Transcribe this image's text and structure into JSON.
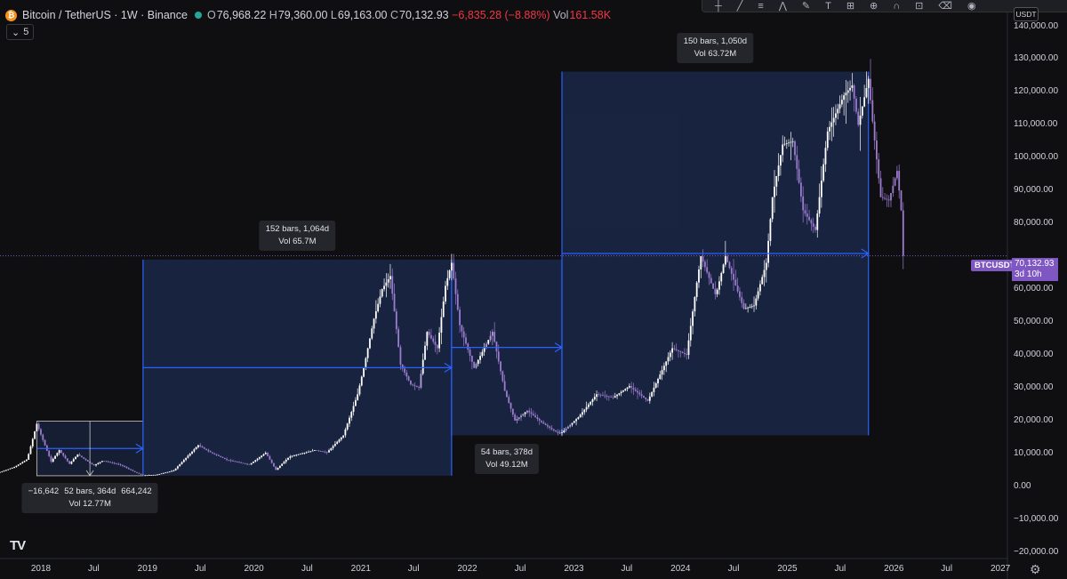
{
  "header": {
    "symbol": "Bitcoin / TetherUS · 1W · Binance",
    "ohlc": {
      "open_label": "O",
      "open": "76,968.22",
      "high_label": "H",
      "high": "79,360.00",
      "low_label": "L",
      "low": "69,163.00",
      "close_label": "C",
      "close": "70,132.93",
      "change": "−6,835.28 (−8.88%)",
      "vol_label": "Vol",
      "vol": "161.58K"
    },
    "indicators_count": "5"
  },
  "currency": "USDT",
  "colors": {
    "background": "#0f0f11",
    "candle": "#ffffff",
    "candle_recent": "#9c7bd0",
    "range_fill": "#1c2b4f",
    "range_line": "#2962ff",
    "price_tag": "#7e57c2"
  },
  "toolbar_icons": [
    "crosshair-icon",
    "trend-line-icon",
    "fib-icon",
    "pattern-icon",
    "brush-icon",
    "text-icon",
    "measure-icon",
    "zoom-icon",
    "magnet-icon",
    "lock-icon",
    "trash-icon",
    "eye-icon"
  ],
  "price_axis": {
    "ticks": [
      {
        "value": 140000,
        "label": "140,000.00"
      },
      {
        "value": 130000,
        "label": "130,000.00"
      },
      {
        "value": 120000,
        "label": "120,000.00"
      },
      {
        "value": 110000,
        "label": "110,000.00"
      },
      {
        "value": 100000,
        "label": "100,000.00"
      },
      {
        "value": 90000,
        "label": "90,000.00"
      },
      {
        "value": 80000,
        "label": "80,000.00"
      },
      {
        "value": 60000,
        "label": "60,000.00"
      },
      {
        "value": 50000,
        "label": "50,000.00"
      },
      {
        "value": 40000,
        "label": "40,000.00"
      },
      {
        "value": 30000,
        "label": "30,000.00"
      },
      {
        "value": 20000,
        "label": "20,000.00"
      },
      {
        "value": 10000,
        "label": "10,000.00"
      },
      {
        "value": 0,
        "label": "0.00"
      },
      {
        "value": -10000,
        "label": "−10,000.00"
      },
      {
        "value": -20000,
        "label": "−20,000.00"
      }
    ]
  },
  "time_axis": {
    "ticks": [
      {
        "date": "2018-01-01",
        "label": "2018"
      },
      {
        "date": "2018-07-01",
        "label": "Jul"
      },
      {
        "date": "2019-01-01",
        "label": "2019"
      },
      {
        "date": "2019-07-01",
        "label": "Jul"
      },
      {
        "date": "2020-01-01",
        "label": "2020"
      },
      {
        "date": "2020-07-01",
        "label": "Jul"
      },
      {
        "date": "2021-01-01",
        "label": "2021"
      },
      {
        "date": "2021-07-01",
        "label": "Jul"
      },
      {
        "date": "2022-01-01",
        "label": "2022"
      },
      {
        "date": "2022-07-01",
        "label": "Jul"
      },
      {
        "date": "2023-01-01",
        "label": "2023"
      },
      {
        "date": "2023-07-01",
        "label": "Jul"
      },
      {
        "date": "2024-01-01",
        "label": "2024"
      },
      {
        "date": "2024-07-01",
        "label": "Jul"
      },
      {
        "date": "2025-01-01",
        "label": "2025"
      },
      {
        "date": "2025-07-01",
        "label": "Jul"
      },
      {
        "date": "2026-01-01",
        "label": "2026"
      },
      {
        "date": "2026-07-01",
        "label": "Jul"
      },
      {
        "date": "2027-01-01",
        "label": "2027"
      }
    ]
  },
  "last_price": {
    "symbol": "BTCUSDT",
    "price": "70,132.93",
    "countdown": "3d 10h",
    "value": 70132.93
  },
  "measurements": [
    {
      "start": "2017-12-18",
      "end": "2018-12-17",
      "high": 19800,
      "low": 3200,
      "line1": "52 bars, 364d",
      "line2": "Vol 12.77M",
      "left_label": "−16,642",
      "right_label": "664,242"
    },
    {
      "start": "2018-12-17",
      "end": "2021-11-08",
      "high": 69000,
      "low": 3200,
      "line1": "152 bars, 1,064d",
      "line2": "Vol 65.7M"
    },
    {
      "start": "2021-11-08",
      "end": "2022-11-21",
      "high": 69000,
      "low": 15500,
      "line1": "54 bars, 378d",
      "line2": "Vol 49.12M"
    },
    {
      "start": "2022-11-21",
      "end": "2025-10-06",
      "high": 126200,
      "low": 15500,
      "line1": "150 bars, 1,050d",
      "line2": "Vol 63.72M"
    }
  ],
  "chart_data": {
    "type": "candlestick",
    "title": "Bitcoin / TetherUS · 1W · Binance",
    "xlabel": "",
    "ylabel": "",
    "x_range": [
      "2017-08-14",
      "2027-01-25"
    ],
    "ylim": [
      -22000,
      148000
    ],
    "series": [
      {
        "name": "BTCUSDT",
        "points": [
          [
            "2017-08-14",
            4300
          ],
          [
            "2017-10-01",
            5800
          ],
          [
            "2017-11-15",
            8200
          ],
          [
            "2017-12-18",
            19000
          ],
          [
            "2018-02-05",
            7500
          ],
          [
            "2018-03-05",
            11000
          ],
          [
            "2018-04-09",
            6800
          ],
          [
            "2018-05-07",
            9700
          ],
          [
            "2018-07-01",
            6300
          ],
          [
            "2018-08-01",
            7800
          ],
          [
            "2018-10-01",
            6500
          ],
          [
            "2018-11-19",
            4300
          ],
          [
            "2018-12-17",
            3300
          ],
          [
            "2019-02-01",
            3500
          ],
          [
            "2019-04-01",
            4800
          ],
          [
            "2019-06-24",
            12500
          ],
          [
            "2019-08-01",
            10500
          ],
          [
            "2019-10-01",
            8000
          ],
          [
            "2019-12-16",
            6600
          ],
          [
            "2020-02-10",
            10200
          ],
          [
            "2020-03-16",
            5000
          ],
          [
            "2020-05-01",
            9000
          ],
          [
            "2020-07-27",
            11000
          ],
          [
            "2020-09-07",
            10300
          ],
          [
            "2020-11-02",
            15500
          ],
          [
            "2020-12-21",
            28000
          ],
          [
            "2021-01-11",
            36000
          ],
          [
            "2021-02-15",
            51000
          ],
          [
            "2021-03-15",
            60000
          ],
          [
            "2021-04-12",
            64000
          ],
          [
            "2021-05-17",
            37000
          ],
          [
            "2021-06-21",
            31000
          ],
          [
            "2021-07-19",
            30000
          ],
          [
            "2021-08-16",
            47000
          ],
          [
            "2021-09-20",
            42000
          ],
          [
            "2021-10-18",
            61000
          ],
          [
            "2021-11-08",
            68000
          ],
          [
            "2021-12-06",
            49000
          ],
          [
            "2022-01-24",
            36000
          ],
          [
            "2022-03-28",
            47000
          ],
          [
            "2022-05-09",
            29000
          ],
          [
            "2022-06-13",
            20000
          ],
          [
            "2022-07-25",
            23000
          ],
          [
            "2022-09-19",
            19000
          ],
          [
            "2022-11-07",
            16200
          ],
          [
            "2022-11-21",
            16400
          ],
          [
            "2023-01-16",
            21000
          ],
          [
            "2023-03-20",
            28000
          ],
          [
            "2023-05-15",
            27000
          ],
          [
            "2023-07-10",
            30500
          ],
          [
            "2023-09-11",
            26000
          ],
          [
            "2023-10-23",
            34000
          ],
          [
            "2023-12-04",
            42000
          ],
          [
            "2024-01-22",
            40000
          ],
          [
            "2024-02-26",
            62000
          ],
          [
            "2024-03-11",
            70000
          ],
          [
            "2024-05-01",
            58000
          ],
          [
            "2024-06-03",
            70000
          ],
          [
            "2024-08-05",
            54000
          ],
          [
            "2024-09-09",
            55000
          ],
          [
            "2024-10-21",
            68000
          ],
          [
            "2024-11-11",
            88000
          ],
          [
            "2024-12-16",
            104000
          ],
          [
            "2025-01-20",
            105000
          ],
          [
            "2025-02-24",
            84000
          ],
          [
            "2025-04-07",
            78000
          ],
          [
            "2025-05-19",
            108000
          ],
          [
            "2025-07-14",
            119000
          ],
          [
            "2025-08-11",
            122000
          ],
          [
            "2025-09-01",
            110000
          ],
          [
            "2025-10-06",
            124000
          ],
          [
            "2025-10-20",
            111000
          ],
          [
            "2025-11-17",
            88000
          ],
          [
            "2025-12-15",
            87000
          ],
          [
            "2026-01-12",
            96000
          ],
          [
            "2026-01-26",
            84000
          ],
          [
            "2026-02-02",
            70132.93
          ]
        ]
      }
    ]
  }
}
